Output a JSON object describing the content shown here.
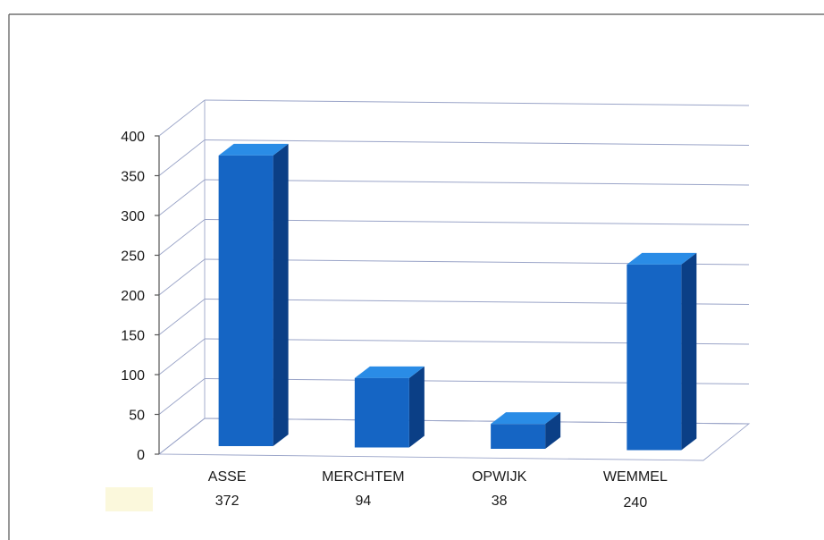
{
  "chart_data": {
    "type": "bar",
    "style": "3d-column",
    "categories": [
      "ASSE",
      "MERCHTEM",
      "OPWIJK",
      "WEMMEL"
    ],
    "values": [
      372,
      94,
      38,
      240
    ],
    "data_labels": [
      "372",
      "94",
      "38",
      "240"
    ],
    "title": "",
    "xlabel": "",
    "ylabel": "",
    "ylim": [
      0,
      400
    ],
    "yticks": [
      "0",
      "50",
      "100",
      "150",
      "200",
      "250",
      "300",
      "350",
      "400"
    ],
    "grid": true,
    "legend": "none",
    "colors": {
      "bar_front": "#1565c4",
      "bar_side": "#0b3f86",
      "bar_top": "#2a8ce6",
      "grid": "#9aa4c8",
      "legend_swatch": "#fbf8dc"
    }
  }
}
